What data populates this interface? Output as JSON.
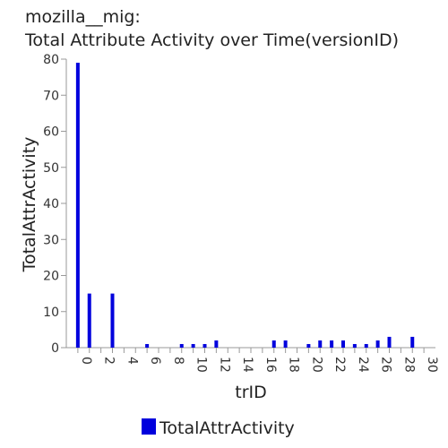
{
  "chart_data": {
    "type": "bar",
    "title_line1": "mozilla__mig:",
    "title_line2": "Total Attribute Activity over Time(versionID)",
    "xlabel": "trID",
    "ylabel": "TotalAttrActivity",
    "xlim": [
      -1,
      31
    ],
    "ylim": [
      0,
      80
    ],
    "x_ticks": [
      0,
      2,
      4,
      6,
      8,
      10,
      12,
      14,
      16,
      18,
      20,
      22,
      24,
      26,
      28,
      30
    ],
    "y_ticks": [
      0,
      10,
      20,
      30,
      40,
      50,
      60,
      70,
      80
    ],
    "legend_position": "bottom",
    "grid": false,
    "series": [
      {
        "name": "TotalAttrActivity",
        "color": "#0000dd",
        "points": [
          {
            "x": 0,
            "y": 79
          },
          {
            "x": 1,
            "y": 15
          },
          {
            "x": 3,
            "y": 15
          },
          {
            "x": 6,
            "y": 1
          },
          {
            "x": 9,
            "y": 1
          },
          {
            "x": 10,
            "y": 1
          },
          {
            "x": 11,
            "y": 1
          },
          {
            "x": 12,
            "y": 2
          },
          {
            "x": 17,
            "y": 2
          },
          {
            "x": 18,
            "y": 2
          },
          {
            "x": 20,
            "y": 1
          },
          {
            "x": 21,
            "y": 2
          },
          {
            "x": 22,
            "y": 2
          },
          {
            "x": 23,
            "y": 2
          },
          {
            "x": 24,
            "y": 1
          },
          {
            "x": 25,
            "y": 1
          },
          {
            "x": 26,
            "y": 2
          },
          {
            "x": 27,
            "y": 3
          },
          {
            "x": 29,
            "y": 3
          }
        ]
      }
    ]
  }
}
